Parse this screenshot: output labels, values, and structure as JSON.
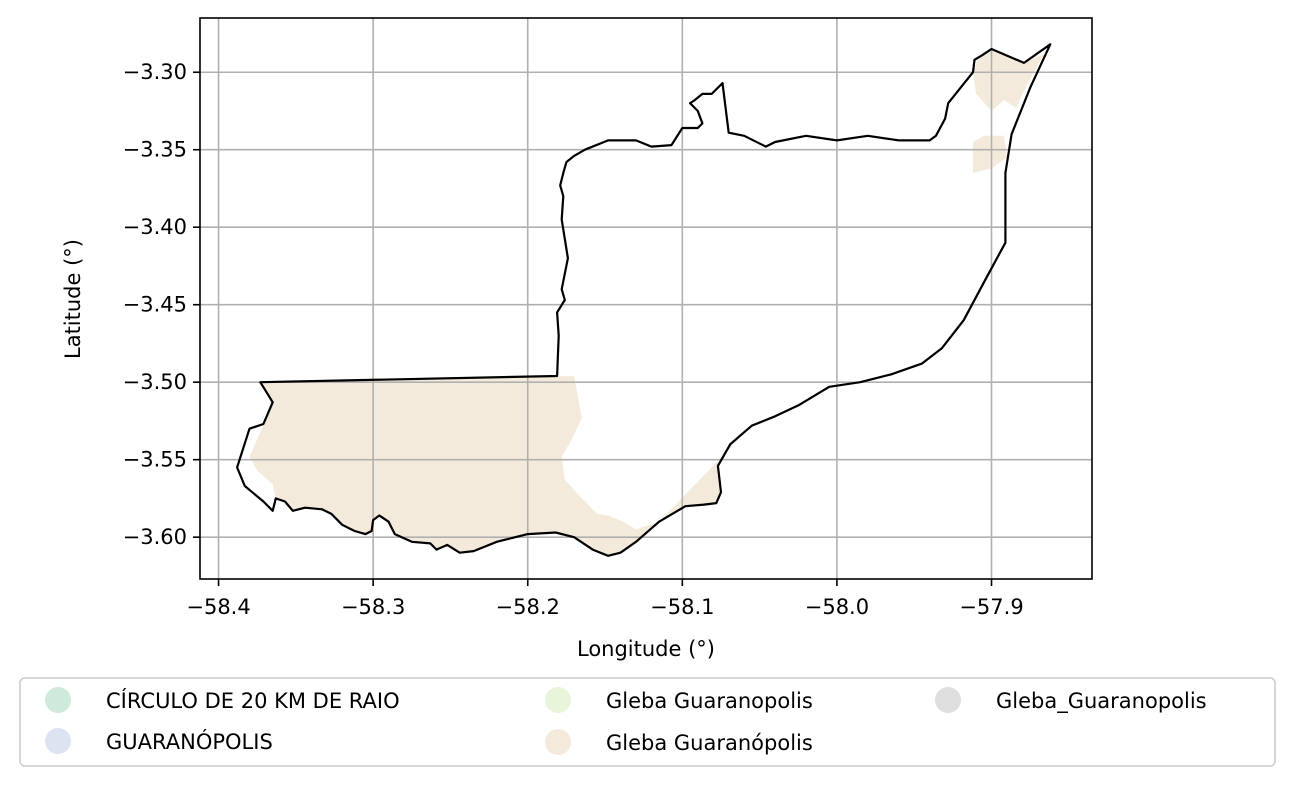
{
  "chart_data": {
    "type": "map",
    "xlabel": "Longitude (°)",
    "ylabel": "Latitude (°)",
    "xlim": [
      -58.412,
      -57.835
    ],
    "ylim": [
      -3.627,
      -3.265
    ],
    "grid": true,
    "x_ticks": [
      {
        "value": -58.4,
        "label": "−58.4"
      },
      {
        "value": -58.3,
        "label": "−58.3"
      },
      {
        "value": -58.2,
        "label": "−58.2"
      },
      {
        "value": -58.1,
        "label": "−58.1"
      },
      {
        "value": -58.0,
        "label": "−58.0"
      },
      {
        "value": -57.9,
        "label": "−57.9"
      }
    ],
    "y_ticks": [
      {
        "value": -3.3,
        "label": "−3.30"
      },
      {
        "value": -3.35,
        "label": "−3.35"
      },
      {
        "value": -3.4,
        "label": "−3.40"
      },
      {
        "value": -3.45,
        "label": "−3.45"
      },
      {
        "value": -3.5,
        "label": "−3.50"
      },
      {
        "value": -3.55,
        "label": "−3.55"
      },
      {
        "value": -3.6,
        "label": "−3.60"
      }
    ],
    "legend_position": "bottom",
    "legend": [
      {
        "label": "CÍRCULO DE 20 KM DE RAIO",
        "color": "#cdeadb"
      },
      {
        "label": "GUARANÓPOLIS",
        "color": "#dde3f1"
      },
      {
        "label": "Gleba Guaranopolis",
        "color": "#e9f5da"
      },
      {
        "label": "Gleba Guaranópolis",
        "color": "#f4eadb"
      },
      {
        "label": "Gleba_Guaranopolis",
        "color": "#dedede"
      }
    ],
    "outline_color": "#000000",
    "fill_color": "#f4eadb",
    "outline": [
      [
        -58.373,
        -3.5
      ],
      [
        -58.368,
        -3.508
      ],
      [
        -58.365,
        -3.513
      ],
      [
        -58.371,
        -3.527
      ],
      [
        -58.38,
        -3.53
      ],
      [
        -58.388,
        -3.555
      ],
      [
        -58.383,
        -3.567
      ],
      [
        -58.371,
        -3.577
      ],
      [
        -58.365,
        -3.583
      ],
      [
        -58.363,
        -3.575
      ],
      [
        -58.357,
        -3.577
      ],
      [
        -58.352,
        -3.583
      ],
      [
        -58.344,
        -3.581
      ],
      [
        -58.333,
        -3.582
      ],
      [
        -58.327,
        -3.585
      ],
      [
        -58.32,
        -3.592
      ],
      [
        -58.312,
        -3.596
      ],
      [
        -58.305,
        -3.598
      ],
      [
        -58.301,
        -3.596
      ],
      [
        -58.3,
        -3.589
      ],
      [
        -58.296,
        -3.586
      ],
      [
        -58.29,
        -3.59
      ],
      [
        -58.286,
        -3.598
      ],
      [
        -58.275,
        -3.603
      ],
      [
        -58.263,
        -3.604
      ],
      [
        -58.259,
        -3.608
      ],
      [
        -58.252,
        -3.605
      ],
      [
        -58.244,
        -3.61
      ],
      [
        -58.235,
        -3.609
      ],
      [
        -58.22,
        -3.603
      ],
      [
        -58.2,
        -3.598
      ],
      [
        -58.182,
        -3.597
      ],
      [
        -58.17,
        -3.6
      ],
      [
        -58.158,
        -3.608
      ],
      [
        -58.148,
        -3.612
      ],
      [
        -58.14,
        -3.61
      ],
      [
        -58.13,
        -3.603
      ],
      [
        -58.115,
        -3.59
      ],
      [
        -58.098,
        -3.58
      ],
      [
        -58.086,
        -3.579
      ],
      [
        -58.078,
        -3.578
      ],
      [
        -58.075,
        -3.571
      ],
      [
        -58.077,
        -3.554
      ],
      [
        -58.069,
        -3.54
      ],
      [
        -58.055,
        -3.528
      ],
      [
        -58.04,
        -3.522
      ],
      [
        -58.025,
        -3.515
      ],
      [
        -58.005,
        -3.503
      ],
      [
        -57.985,
        -3.5
      ],
      [
        -57.965,
        -3.495
      ],
      [
        -57.945,
        -3.488
      ],
      [
        -57.932,
        -3.478
      ],
      [
        -57.918,
        -3.46
      ],
      [
        -57.903,
        -3.432
      ],
      [
        -57.891,
        -3.41
      ],
      [
        -57.891,
        -3.385
      ],
      [
        -57.891,
        -3.365
      ],
      [
        -57.887,
        -3.34
      ],
      [
        -57.875,
        -3.31
      ],
      [
        -57.862,
        -3.282
      ],
      [
        -57.879,
        -3.294
      ],
      [
        -57.9,
        -3.285
      ],
      [
        -57.906,
        -3.289
      ],
      [
        -57.911,
        -3.292
      ],
      [
        -57.912,
        -3.3
      ],
      [
        -57.92,
        -3.31
      ],
      [
        -57.928,
        -3.32
      ],
      [
        -57.93,
        -3.33
      ],
      [
        -57.936,
        -3.341
      ],
      [
        -57.94,
        -3.344
      ],
      [
        -57.96,
        -3.344
      ],
      [
        -57.98,
        -3.341
      ],
      [
        -58.0,
        -3.344
      ],
      [
        -58.02,
        -3.341
      ],
      [
        -58.04,
        -3.345
      ],
      [
        -58.046,
        -3.348
      ],
      [
        -58.06,
        -3.341
      ],
      [
        -58.07,
        -3.339
      ],
      [
        -58.074,
        -3.307
      ],
      [
        -58.081,
        -3.314
      ],
      [
        -58.087,
        -3.314
      ],
      [
        -58.092,
        -3.318
      ],
      [
        -58.095,
        -3.32
      ],
      [
        -58.09,
        -3.325
      ],
      [
        -58.087,
        -3.333
      ],
      [
        -58.09,
        -3.336
      ],
      [
        -58.095,
        -3.336
      ],
      [
        -58.1,
        -3.336
      ],
      [
        -58.107,
        -3.347
      ],
      [
        -58.12,
        -3.348
      ],
      [
        -58.13,
        -3.344
      ],
      [
        -58.148,
        -3.344
      ],
      [
        -58.163,
        -3.35
      ],
      [
        -58.17,
        -3.354
      ],
      [
        -58.175,
        -3.358
      ],
      [
        -58.177,
        -3.365
      ],
      [
        -58.179,
        -3.373
      ],
      [
        -58.177,
        -3.38
      ],
      [
        -58.178,
        -3.395
      ],
      [
        -58.174,
        -3.42
      ],
      [
        -58.178,
        -3.44
      ],
      [
        -58.176,
        -3.447
      ],
      [
        -58.181,
        -3.455
      ],
      [
        -58.18,
        -3.47
      ],
      [
        -58.181,
        -3.496
      ],
      [
        -58.373,
        -3.5
      ]
    ],
    "fill_regions": [
      [
        [
          -58.372,
          -3.5
        ],
        [
          -58.24,
          -3.497
        ],
        [
          -58.17,
          -3.496
        ],
        [
          -58.165,
          -3.523
        ],
        [
          -58.172,
          -3.538
        ],
        [
          -58.178,
          -3.548
        ],
        [
          -58.176,
          -3.563
        ],
        [
          -58.165,
          -3.575
        ],
        [
          -58.155,
          -3.585
        ],
        [
          -58.148,
          -3.586
        ],
        [
          -58.138,
          -3.59
        ],
        [
          -58.13,
          -3.595
        ],
        [
          -58.115,
          -3.59
        ],
        [
          -58.098,
          -3.58
        ],
        [
          -58.086,
          -3.579
        ],
        [
          -58.078,
          -3.578
        ],
        [
          -58.075,
          -3.571
        ],
        [
          -58.077,
          -3.554
        ],
        [
          -58.069,
          -3.54
        ],
        [
          -58.055,
          -3.528
        ],
        [
          -58.115,
          -3.59
        ],
        [
          -58.13,
          -3.603
        ],
        [
          -58.14,
          -3.61
        ],
        [
          -58.148,
          -3.612
        ],
        [
          -58.158,
          -3.608
        ],
        [
          -58.17,
          -3.6
        ],
        [
          -58.182,
          -3.597
        ],
        [
          -58.2,
          -3.598
        ],
        [
          -58.22,
          -3.603
        ],
        [
          -58.235,
          -3.609
        ],
        [
          -58.244,
          -3.61
        ],
        [
          -58.252,
          -3.605
        ],
        [
          -58.259,
          -3.608
        ],
        [
          -58.263,
          -3.604
        ],
        [
          -58.275,
          -3.603
        ],
        [
          -58.286,
          -3.598
        ],
        [
          -58.29,
          -3.59
        ],
        [
          -58.296,
          -3.586
        ],
        [
          -58.3,
          -3.589
        ],
        [
          -58.301,
          -3.596
        ],
        [
          -58.305,
          -3.598
        ],
        [
          -58.312,
          -3.596
        ],
        [
          -58.32,
          -3.592
        ],
        [
          -58.327,
          -3.585
        ],
        [
          -58.333,
          -3.582
        ],
        [
          -58.344,
          -3.581
        ],
        [
          -58.352,
          -3.583
        ],
        [
          -58.357,
          -3.577
        ],
        [
          -58.363,
          -3.575
        ],
        [
          -58.365,
          -3.566
        ],
        [
          -58.375,
          -3.557
        ],
        [
          -58.38,
          -3.548
        ],
        [
          -58.372,
          -3.53
        ],
        [
          -58.365,
          -3.513
        ],
        [
          -58.368,
          -3.508
        ]
      ],
      [
        [
          -58.12,
          -3.59
        ],
        [
          -58.098,
          -3.58
        ],
        [
          -58.086,
          -3.579
        ],
        [
          -58.078,
          -3.578
        ],
        [
          -58.075,
          -3.571
        ],
        [
          -58.077,
          -3.556
        ],
        [
          -58.085,
          -3.57
        ],
        [
          -58.1,
          -3.578
        ],
        [
          -58.11,
          -3.585
        ]
      ],
      [
        [
          -57.908,
          -3.29
        ],
        [
          -57.9,
          -3.285
        ],
        [
          -57.879,
          -3.294
        ],
        [
          -57.866,
          -3.288
        ],
        [
          -57.878,
          -3.31
        ],
        [
          -57.884,
          -3.323
        ],
        [
          -57.892,
          -3.318
        ],
        [
          -57.9,
          -3.325
        ],
        [
          -57.91,
          -3.314
        ],
        [
          -57.912,
          -3.3
        ]
      ],
      [
        [
          -57.912,
          -3.345
        ],
        [
          -57.905,
          -3.341
        ],
        [
          -57.892,
          -3.341
        ],
        [
          -57.89,
          -3.355
        ],
        [
          -57.9,
          -3.362
        ],
        [
          -57.912,
          -3.365
        ]
      ]
    ]
  }
}
